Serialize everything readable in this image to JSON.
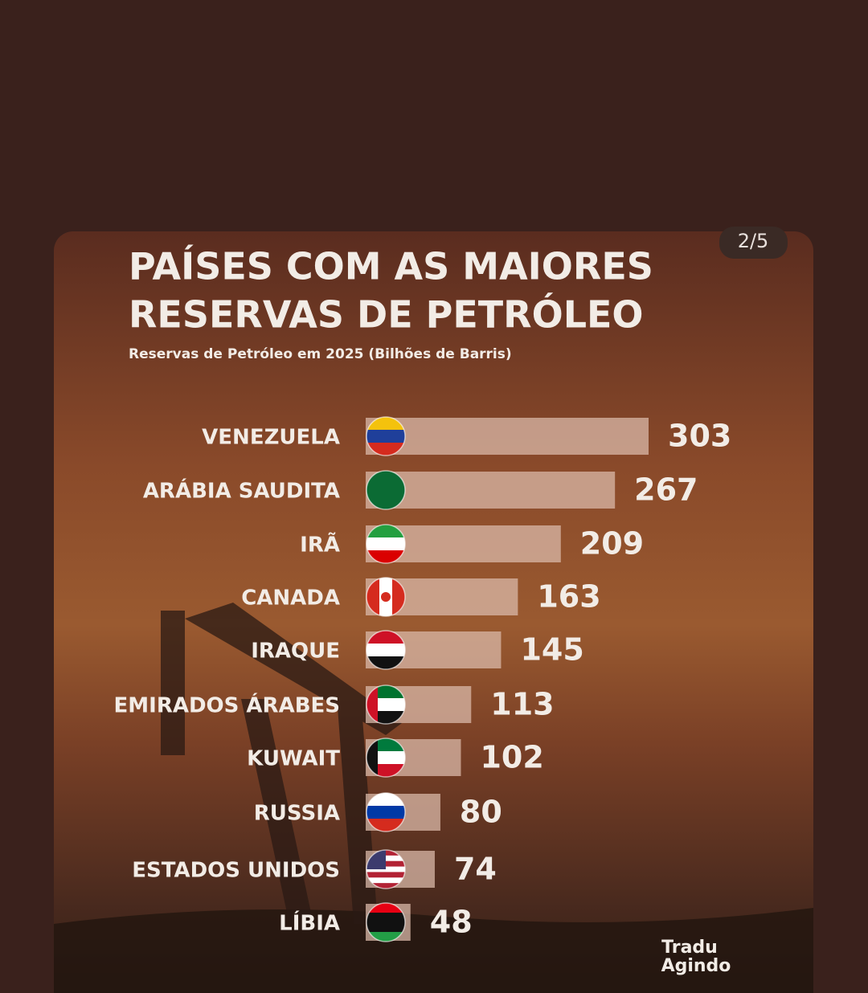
{
  "page_indicator": "2/5",
  "logo": [
    "Tradu",
    "Agindo"
  ],
  "chart_data": {
    "type": "bar",
    "title": [
      "PAÍSES COM AS MAIORES",
      "RESERVAS DE PETRÓLEO"
    ],
    "subtitle": "Reservas de Petróleo em 2025 (Bilhões de Barris)",
    "categories": [
      "VENEZUELA",
      "ARÁBIA SAUDITA",
      "IRÃ",
      "CANADA",
      "IRAQUE",
      "EMIRADOS ÁRABES",
      "KUWAIT",
      "RUSSIA",
      "ESTADOS UNIDOS",
      "LÍBIA"
    ],
    "values": [
      303,
      267,
      209,
      163,
      145,
      113,
      102,
      80,
      74,
      48
    ],
    "color": "#d9b8a8"
  }
}
